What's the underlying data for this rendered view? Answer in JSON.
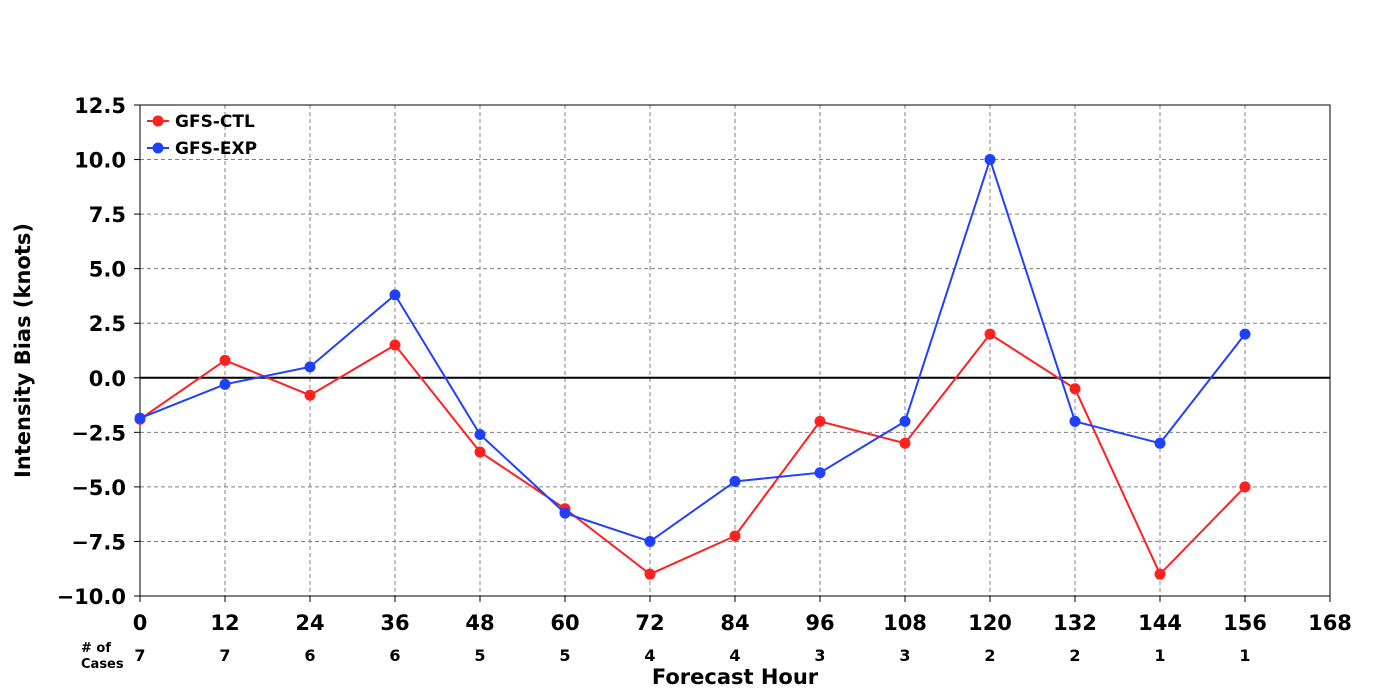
{
  "chart_data": {
    "type": "line",
    "xlabel": "Forecast Hour",
    "ylabel": "Intensity Bias (knots)",
    "xlim": [
      0,
      168
    ],
    "ylim": [
      -10.0,
      12.5
    ],
    "x_ticks": [
      0,
      12,
      24,
      36,
      48,
      60,
      72,
      84,
      96,
      108,
      120,
      132,
      144,
      156,
      168
    ],
    "x_tick_labels": [
      "0",
      "12",
      "24",
      "36",
      "48",
      "60",
      "72",
      "84",
      "96",
      "108",
      "120",
      "132",
      "144",
      "156",
      "168"
    ],
    "y_ticks": [
      -10.0,
      -7.5,
      -5.0,
      -2.5,
      0.0,
      2.5,
      5.0,
      7.5,
      10.0,
      12.5
    ],
    "y_tick_labels": [
      "−10.0",
      "−7.5",
      "−5.0",
      "−2.5",
      "0.0",
      "2.5",
      "5.0",
      "7.5",
      "10.0",
      "12.5"
    ],
    "grid": true,
    "legend_position": "top-left",
    "zero_line": true,
    "x": [
      0,
      12,
      24,
      36,
      48,
      60,
      72,
      84,
      96,
      108,
      120,
      132,
      144,
      156
    ],
    "series": [
      {
        "name": "GFS-CTL",
        "color": "#ff2020",
        "values": [
          -1.9,
          0.8,
          -0.8,
          1.5,
          -3.4,
          -6.0,
          -9.0,
          -7.25,
          -2.0,
          -3.0,
          2.0,
          -0.5,
          -9.0,
          -5.0
        ]
      },
      {
        "name": "GFS-EXP",
        "color": "#2040ff",
        "values": [
          -1.85,
          -0.3,
          0.5,
          3.8,
          -2.6,
          -6.2,
          -7.5,
          -4.75,
          -4.35,
          -2.0,
          10.0,
          -2.0,
          -3.0,
          2.0
        ]
      }
    ],
    "cases_label": "# of\nCases",
    "cases_label_lines": [
      "# of",
      "Cases"
    ],
    "cases": [
      "7",
      "7",
      "6",
      "6",
      "5",
      "5",
      "4",
      "4",
      "3",
      "3",
      "2",
      "2",
      "1",
      "1"
    ]
  }
}
